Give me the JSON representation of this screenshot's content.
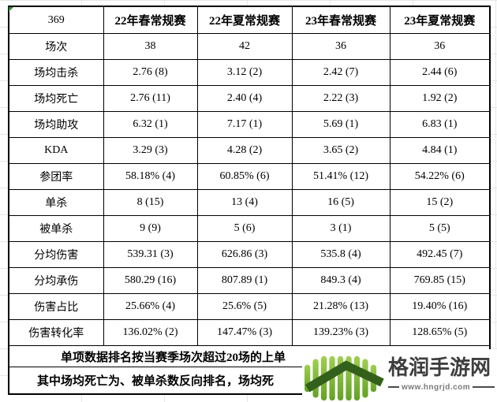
{
  "table": {
    "corner_label": "369",
    "columns": [
      "22年春常规赛",
      "22年夏常规赛",
      "23年春常规赛",
      "23年夏常规赛"
    ],
    "rows": [
      {
        "label": "场次",
        "values": [
          "38",
          "42",
          "36",
          "36"
        ]
      },
      {
        "label": "场均击杀",
        "values": [
          "2.76 (8)",
          "3.12 (2)",
          "2.42 (7)",
          "2.44 (6)"
        ]
      },
      {
        "label": "场均死亡",
        "values": [
          "2.76 (11)",
          "2.40 (4)",
          "2.22 (3)",
          "1.92 (2)"
        ]
      },
      {
        "label": "场均助攻",
        "values": [
          "6.32 (1)",
          "7.17 (1)",
          "5.69 (1)",
          "6.83 (1)"
        ]
      },
      {
        "label": "KDA",
        "values": [
          "3.29 (3)",
          "4.28 (2)",
          "3.65 (2)",
          "4.84 (1)"
        ]
      },
      {
        "label": "参团率",
        "values": [
          "58.18% (4)",
          "60.85% (6)",
          "51.41% (12)",
          "54.22% (6)"
        ]
      },
      {
        "label": "单杀",
        "values": [
          "8 (15)",
          "13 (4)",
          "16 (5)",
          "15 (2)"
        ]
      },
      {
        "label": "被单杀",
        "values": [
          "9 (9)",
          "5 (6)",
          "3 (1)",
          "5 (5)"
        ]
      },
      {
        "label": "分均伤害",
        "values": [
          "539.31 (3)",
          "626.86 (3)",
          "535.8 (4)",
          "492.45 (7)"
        ]
      },
      {
        "label": "分均承伤",
        "values": [
          "580.29 (16)",
          "807.89 (1)",
          "849.3 (4)",
          "769.85 (15)"
        ]
      },
      {
        "label": "伤害占比",
        "values": [
          "25.66% (4)",
          "25.6% (5)",
          "21.28% (13)",
          "19.40% (16)"
        ]
      },
      {
        "label": "伤害转化率",
        "values": [
          "136.02% (2)",
          "147.47% (3)",
          "139.23% (3)",
          "128.65% (5)"
        ]
      }
    ],
    "footnotes": [
      "单项数据排名按当赛季场次超过20场的上单",
      "其中场均死亡为、被单杀数反向排名，场均死"
    ]
  },
  "watermark": {
    "site_name": "格润手游网",
    "site_url": "www.hngrjd.com",
    "logo_bar_color_top": "#a0cf52",
    "logo_bar_color_bottom": "#63a226",
    "logo_arrow_color": "#33611c",
    "text_color": "#3e3e3e"
  }
}
